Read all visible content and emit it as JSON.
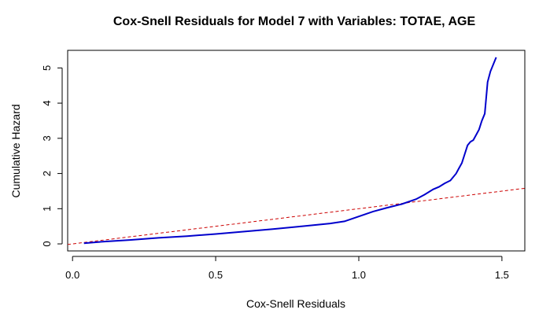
{
  "chart_data": {
    "type": "line",
    "title": "Cox-Snell Residuals for Model 7 with Variables: TOTAE, AGE",
    "xlabel": "Cox-Snell Residuals",
    "ylabel": "Cumulative Hazard",
    "xlim": [
      -0.017,
      1.58
    ],
    "ylim": [
      -0.2,
      5.5
    ],
    "x_ticks": [
      "0.0",
      "0.5",
      "1.0",
      "1.5"
    ],
    "y_ticks": [
      "0",
      "1",
      "2",
      "3",
      "4",
      "5"
    ],
    "grid": false,
    "legend": "none",
    "series": [
      {
        "color": "#0000cc",
        "style": "solid",
        "x": [
          0.04,
          0.1,
          0.2,
          0.3,
          0.4,
          0.5,
          0.6,
          0.7,
          0.8,
          0.9,
          0.95,
          1.0,
          1.05,
          1.1,
          1.15,
          1.2,
          1.23,
          1.26,
          1.28,
          1.3,
          1.32,
          1.34,
          1.35,
          1.36,
          1.37,
          1.38,
          1.39,
          1.4,
          1.41,
          1.42,
          1.43,
          1.44,
          1.45,
          1.46,
          1.48
        ],
        "y": [
          0.02,
          0.06,
          0.11,
          0.17,
          0.22,
          0.28,
          0.35,
          0.42,
          0.5,
          0.58,
          0.64,
          0.78,
          0.92,
          1.03,
          1.13,
          1.27,
          1.4,
          1.55,
          1.62,
          1.72,
          1.8,
          2.0,
          2.15,
          2.3,
          2.55,
          2.8,
          2.9,
          2.95,
          3.1,
          3.25,
          3.5,
          3.7,
          4.6,
          4.9,
          5.3
        ]
      },
      {
        "color": "#cc0000",
        "style": "dashed",
        "x": [
          -0.017,
          1.58
        ],
        "y": [
          -0.017,
          1.58
        ]
      }
    ]
  }
}
